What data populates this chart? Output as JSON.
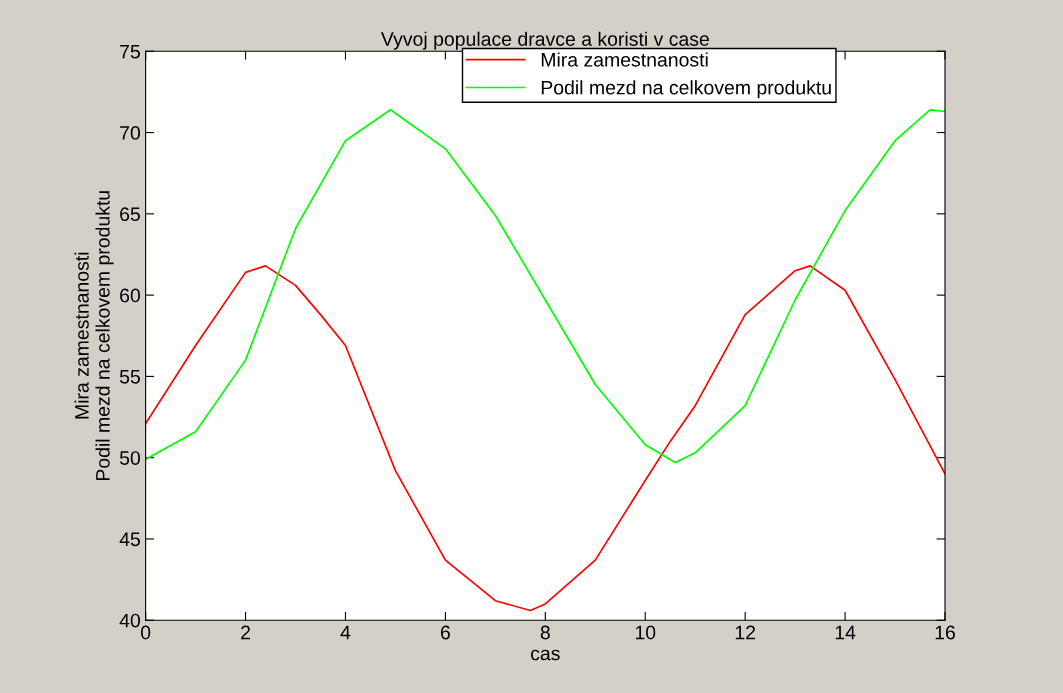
{
  "chart_data": {
    "type": "line",
    "title": "Vyvoj populace dravce a koristi v case",
    "xlabel": "cas",
    "ylabel": "Mira zamestnanosti\nPodil mezd na celkovem produktu",
    "xlim": [
      0,
      16
    ],
    "xticks": [
      0,
      2,
      4,
      6,
      8,
      10,
      12,
      14,
      16
    ],
    "ylim": [
      40,
      75
    ],
    "yticks": [
      40,
      45,
      50,
      55,
      60,
      65,
      70,
      75
    ],
    "grid": false,
    "legend": "top",
    "line_style": "solid",
    "series": [
      {
        "name": "Mira zamestnanosti",
        "color": "#ff0000",
        "x": [
          0,
          1,
          2,
          2.4,
          3,
          3.5,
          4,
          5,
          6,
          7,
          7.7,
          8,
          9,
          10,
          10.5,
          11,
          12,
          13,
          13.3,
          14,
          15,
          16
        ],
        "values": [
          52.1,
          56.9,
          61.4,
          61.8,
          60.6,
          58.8,
          56.9,
          49.2,
          43.7,
          41.2,
          40.6,
          41.0,
          43.7,
          48.6,
          51.0,
          53.2,
          58.8,
          61.5,
          61.8,
          60.3,
          54.8,
          49.0
        ]
      },
      {
        "name": "Podil mezd na celkovem produktu",
        "color": "#00ff00",
        "x": [
          0,
          1,
          2,
          3,
          4,
          4.9,
          6,
          7,
          8,
          9,
          10,
          10.6,
          11,
          12,
          13,
          14,
          15,
          15.7,
          16
        ],
        "values": [
          49.9,
          51.6,
          56.0,
          64.1,
          69.5,
          71.4,
          69.0,
          64.9,
          59.7,
          54.5,
          50.8,
          49.7,
          50.3,
          53.2,
          59.7,
          65.2,
          69.5,
          71.4,
          71.3
        ]
      }
    ]
  }
}
